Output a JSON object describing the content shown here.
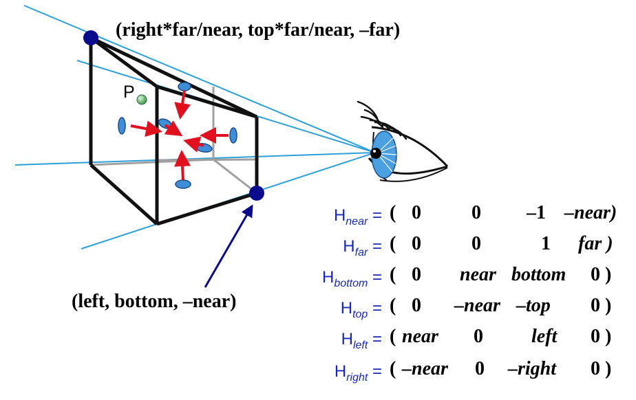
{
  "labels": {
    "corner_far": "(right*far/near, top*far/near, –far)",
    "corner_near": "(left, bottom, –near)",
    "point": "P"
  },
  "equations": [
    {
      "name": "H",
      "sub": "near",
      "eq": "=",
      "cells": [
        "(",
        "0",
        "0",
        "–1",
        "–near)"
      ]
    },
    {
      "name": "H",
      "sub": "far",
      "eq": "=",
      "cells": [
        "(",
        "0",
        "0",
        "1",
        "far )"
      ]
    },
    {
      "name": "H",
      "sub": "bottom",
      "eq": "=",
      "cells": [
        "(",
        "0",
        "near",
        "bottom",
        "0 )"
      ]
    },
    {
      "name": "H",
      "sub": "top",
      "eq": "=",
      "cells": [
        "(",
        "0",
        "–near",
        "–top",
        "0 )"
      ]
    },
    {
      "name": "H",
      "sub": "left",
      "eq": "=",
      "cells": [
        "(",
        "near",
        "0",
        "left",
        "0 )"
      ]
    },
    {
      "name": "H",
      "sub": "right",
      "eq": "=",
      "cells": [
        "(",
        "–near",
        "0",
        "–right",
        "0 )"
      ]
    }
  ],
  "colors": {
    "ray": "#2a9fd8",
    "corner_dot": "#0a0a8c",
    "arrow": "#e0101e",
    "disk": "#3f8fd8",
    "equation_label": "#1528b8",
    "pointer": "#0a0a8c"
  }
}
